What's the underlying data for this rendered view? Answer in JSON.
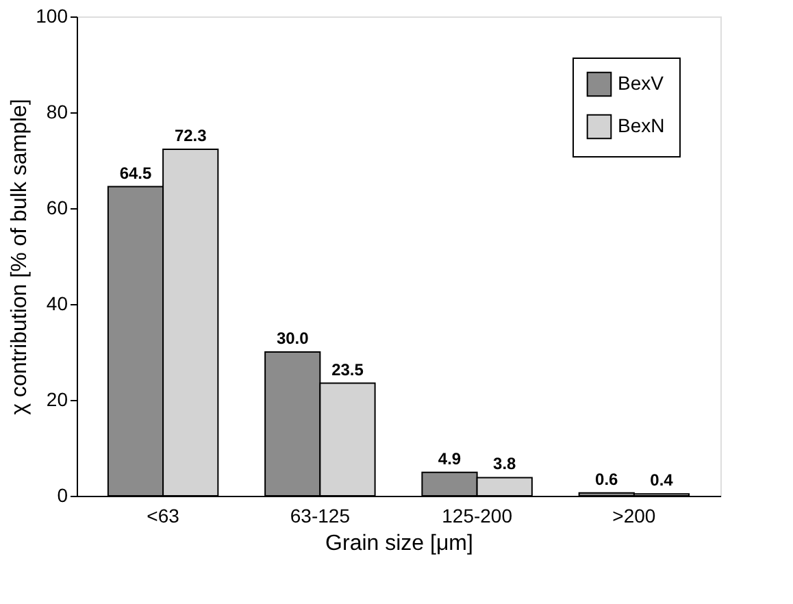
{
  "chart_data": {
    "type": "bar",
    "xlabel": "Grain size [μm]",
    "ylabel": "χ contribution [% of bulk sample]",
    "categories": [
      "<63",
      "63-125",
      "125-200",
      ">200"
    ],
    "series": [
      {
        "name": "BexV",
        "color": "#8c8c8c",
        "values": [
          64.5,
          30.0,
          4.9,
          0.6
        ],
        "value_labels": [
          "64.5",
          "30.0",
          "4.9",
          "0.6"
        ]
      },
      {
        "name": "BexN",
        "color": "#d3d3d3",
        "values": [
          72.3,
          23.5,
          3.8,
          0.4
        ],
        "value_labels": [
          "72.3",
          "23.5",
          "3.8",
          "0.4"
        ]
      }
    ],
    "ylim": [
      0,
      100
    ],
    "yticks": [
      0,
      20,
      40,
      60,
      80,
      100
    ],
    "grid": false,
    "legend": "top right"
  }
}
